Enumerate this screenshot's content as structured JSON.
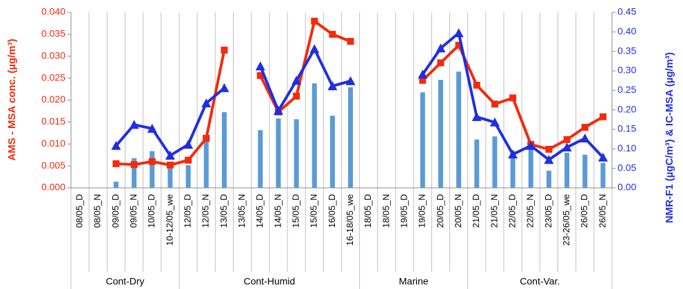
{
  "chart_data": {
    "type": "combo",
    "ylabel": "AMS - MSA conc. (µg/m³)",
    "y2label": "NMR-F1 (µgC/m³) & IC-MSA (µg/m³)",
    "categories": [
      "08/05_D",
      "08/05_N",
      "09/05_D",
      "09/05_N",
      "10/05_D",
      "10-12/05_we",
      "12/05_D",
      "12/05_N",
      "13/05_D",
      "13/05_N",
      "14/05_D",
      "14/05_N",
      "15/05_D",
      "15/05_N",
      "16/05_D",
      "16-18/05_we",
      "18/05_D",
      "18/05_N",
      "19/05_D",
      "19/05_N",
      "20/05_D",
      "20/05_N",
      "21/05_D",
      "21/05_N",
      "22/05_D",
      "22/05_N",
      "23/05_D",
      "23-26/05_we",
      "26/05_D",
      "26/05_N"
    ],
    "groups": [
      {
        "label": "Cont-Dry",
        "span": 6
      },
      {
        "label": "Cont-Humid",
        "span": 10
      },
      {
        "label": "Marine",
        "span": 6
      },
      {
        "label": "Cont-Var.",
        "span": 8
      }
    ],
    "series": [
      {
        "type": "bar",
        "axis": "y2",
        "color": "#5b9bd5",
        "values": [
          null,
          null,
          0.016,
          0.076,
          0.094,
          0.05,
          0.058,
          0.12,
          0.194,
          null,
          0.148,
          0.178,
          0.176,
          0.268,
          0.185,
          0.258,
          null,
          null,
          null,
          0.245,
          0.277,
          0.298,
          0.124,
          0.132,
          0.094,
          0.108,
          0.044,
          0.09,
          0.085,
          0.064
        ]
      },
      {
        "type": "line",
        "axis": "y",
        "color": "#f42a0c",
        "marker": "square",
        "values": [
          null,
          null,
          0.0055,
          0.0053,
          0.006,
          0.0052,
          0.0063,
          0.0113,
          0.0314,
          null,
          0.0256,
          0.0173,
          0.0209,
          0.038,
          0.035,
          0.0334,
          null,
          null,
          null,
          0.0245,
          0.0285,
          0.0325,
          0.0234,
          0.0191,
          0.0205,
          0.0099,
          0.0088,
          0.011,
          0.0138,
          0.0162
        ]
      },
      {
        "type": "line",
        "axis": "y2",
        "color": "#1f2fe0",
        "marker": "triangle",
        "values": [
          null,
          null,
          0.108,
          0.162,
          0.152,
          0.083,
          0.111,
          0.217,
          0.256,
          null,
          0.312,
          0.198,
          0.275,
          0.356,
          0.261,
          0.274,
          null,
          null,
          null,
          0.291,
          0.358,
          0.397,
          0.182,
          0.168,
          0.086,
          0.108,
          0.072,
          0.104,
          0.127,
          0.078
        ]
      }
    ],
    "ylim": [
      0,
      0.04
    ],
    "yticks": [
      {
        "value": 0,
        "label": "0.000"
      },
      0.005,
      {
        "value": 0.01,
        "label": "0.010"
      },
      0.015,
      {
        "value": 0.02,
        "label": "0.020"
      },
      0.025,
      {
        "value": 0.03,
        "label": "0.030"
      },
      0.035,
      {
        "value": 0.04,
        "label": "0.040"
      }
    ],
    "y2lim": [
      0,
      0.45
    ],
    "y2ticks": [
      {
        "value": 0,
        "label": "0.00"
      },
      0.05,
      {
        "value": 0.1,
        "label": "0.10"
      },
      0.15,
      {
        "value": 0.2,
        "label": "0.20"
      },
      0.25,
      {
        "value": 0.3,
        "label": "0.30"
      },
      0.35,
      {
        "value": 0.4,
        "label": "0.40"
      },
      0.45
    ],
    "ycolor": "#f42a0c",
    "y2color": "#1f2fe0",
    "grid": true
  }
}
